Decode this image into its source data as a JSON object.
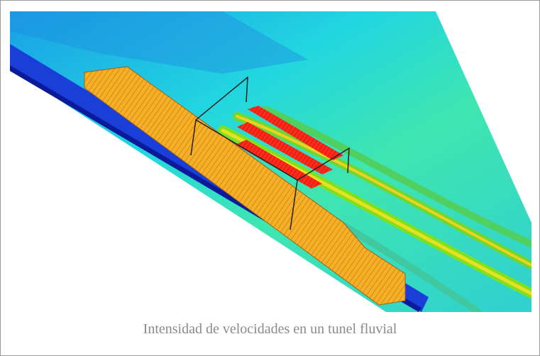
{
  "caption": "Intensidad de velocidades en un tunel fluvial"
}
